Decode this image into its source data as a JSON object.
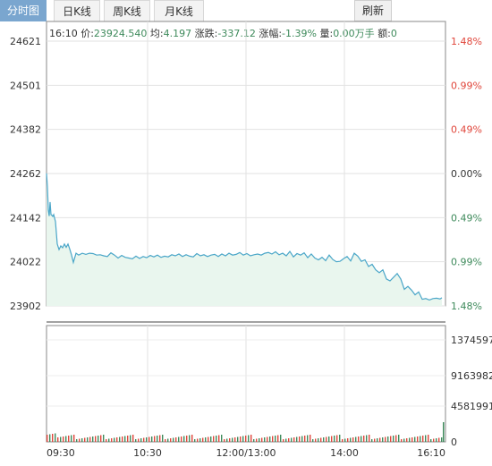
{
  "tabs": [
    {
      "label": "分时图",
      "active": true
    },
    {
      "label": "日K线",
      "active": false
    },
    {
      "label": "周K线",
      "active": false
    },
    {
      "label": "月K线",
      "active": false
    }
  ],
  "refresh_label": "刷新",
  "ticker": {
    "time": "16:10",
    "price_label": "价:",
    "price": "23924.540",
    "avg_label": "均:",
    "avg": "4.197",
    "change_label": "涨跌:",
    "change": "-337.12",
    "pct_label": "涨幅:",
    "pct": "-1.39%",
    "vol_label": "量:",
    "vol": "0.00万手",
    "amt_label": "额:",
    "amt": "0"
  },
  "colors": {
    "up": "#e0463b",
    "down": "#3e8a5b",
    "line": "#4aa6c8",
    "fill": "#e9f6ee"
  },
  "chart_data": {
    "type": "line",
    "price_axis_left": [
      "24621",
      "24501",
      "24382",
      "24262",
      "24142",
      "24022",
      "23902"
    ],
    "pct_axis_right": [
      "1.48%",
      "0.99%",
      "0.49%",
      "0.00%",
      "0.49%",
      "0.99%",
      "1.48%"
    ],
    "volume_axis": [
      "1374597",
      "9163982",
      "4581991",
      "0"
    ],
    "time_labels": [
      "09:30",
      "10:30",
      "12:00/13:00",
      "14:00",
      "16:10"
    ],
    "ylim": [
      23902,
      24621
    ],
    "prev_close": 24262,
    "x": [
      0,
      1,
      2,
      3,
      4,
      5,
      6,
      7,
      8,
      10,
      12,
      14,
      16,
      18,
      20,
      22,
      24,
      26,
      28,
      30,
      33,
      36,
      40,
      44,
      48,
      52,
      56,
      60,
      64,
      68,
      72,
      76,
      80,
      84,
      88,
      92,
      96,
      100,
      104,
      108,
      112,
      116,
      120,
      124,
      128,
      132,
      136,
      140,
      144,
      148,
      152,
      156,
      160,
      164,
      168,
      172,
      176,
      180,
      184,
      188,
      192,
      196,
      200,
      204,
      208,
      212,
      216,
      220,
      224,
      228,
      232,
      236,
      240,
      244,
      248,
      252,
      256,
      260,
      264,
      268,
      272,
      276,
      280,
      284,
      288,
      292,
      296,
      300,
      304,
      308,
      312,
      316,
      320,
      324,
      328,
      332,
      336,
      340,
      344,
      348,
      352,
      356,
      360,
      364,
      368,
      372,
      376,
      380,
      384,
      388,
      392,
      396,
      400,
      404,
      408,
      412,
      416,
      420,
      424,
      428,
      432,
      436,
      440,
      442
    ],
    "values": [
      24262,
      24226,
      24162,
      24146,
      24184,
      24150,
      24148,
      24145,
      24150,
      24131,
      24070,
      24055,
      24065,
      24060,
      24070,
      24061,
      24070,
      24056,
      24040,
      24020,
      24045,
      24040,
      24045,
      24042,
      24045,
      24044,
      24040,
      24041,
      24038,
      24036,
      24046,
      24040,
      24032,
      24039,
      24034,
      24032,
      24030,
      24037,
      24031,
      24036,
      24033,
      24039,
      24035,
      24040,
      24034,
      24037,
      24035,
      24041,
      24038,
      24043,
      24036,
      24041,
      24037,
      24035,
      24044,
      24038,
      24041,
      24036,
      24040,
      24042,
      24036,
      24043,
      24038,
      24045,
      24040,
      24042,
      24047,
      24040,
      24044,
      24038,
      24041,
      24043,
      24040,
      24045,
      24047,
      24043,
      24049,
      24041,
      24045,
      24038,
      24050,
      24035,
      24044,
      24040,
      24046,
      24033,
      24043,
      24032,
      24027,
      24034,
      24025,
      24040,
      24028,
      24022,
      24023,
      24030,
      24036,
      24024,
      24045,
      24037,
      24023,
      24027,
      24009,
      24015,
      24000,
      23992,
      24000,
      23975,
      23970,
      23980,
      23990,
      23975,
      23947,
      23955,
      23945,
      23932,
      23940,
      23920,
      23922,
      23918,
      23922,
      23923,
      23921,
      23924
    ]
  }
}
